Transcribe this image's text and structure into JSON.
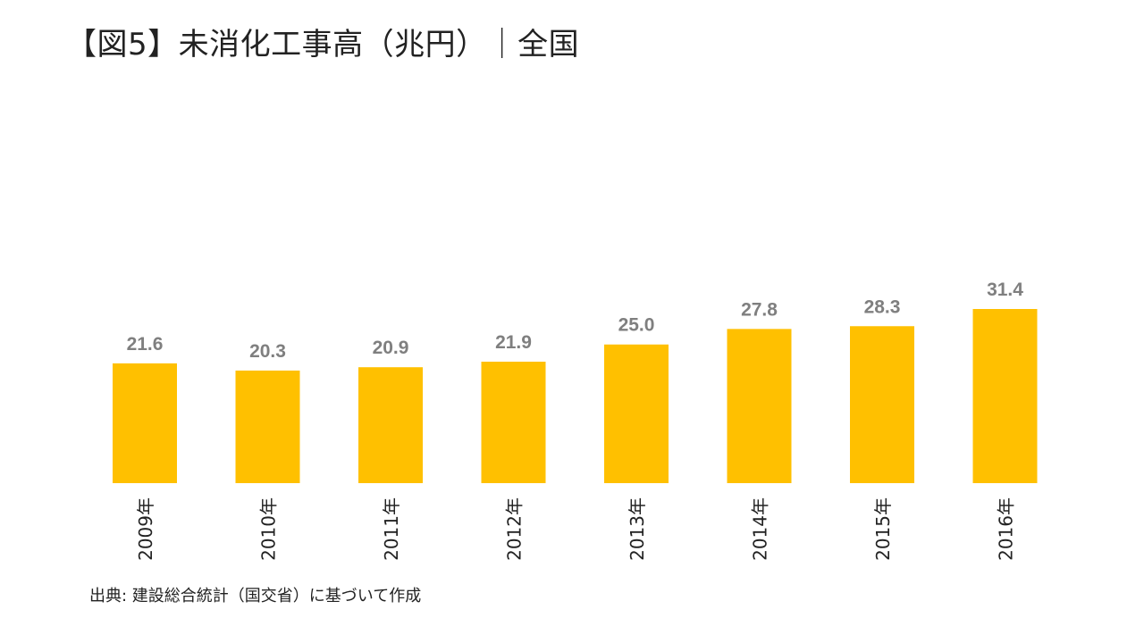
{
  "title": "【図5】未消化工事高（兆円）｜全国",
  "source": "出典: 建設総合統計（国交省）に基づいて作成",
  "colors": {
    "bar": "#FFC000",
    "value_label": "#7F7F7F",
    "tick_label": "#222222"
  },
  "chart_data": {
    "type": "bar",
    "categories": [
      "2009年",
      "2010年",
      "2011年",
      "2012年",
      "2013年",
      "2014年",
      "2015年",
      "2016年"
    ],
    "values": [
      21.6,
      20.3,
      20.9,
      21.9,
      25.0,
      27.8,
      28.3,
      31.4
    ],
    "value_labels": [
      "21.6",
      "20.3",
      "20.9",
      "21.9",
      "25.0",
      "27.8",
      "28.3",
      "31.4"
    ],
    "title": "【図5】未消化工事高（兆円）｜全国",
    "xlabel": "",
    "ylabel": "",
    "ylim": [
      0,
      31.4
    ],
    "grid": false,
    "legend": "none",
    "tick_label_orientation": "vertical"
  }
}
